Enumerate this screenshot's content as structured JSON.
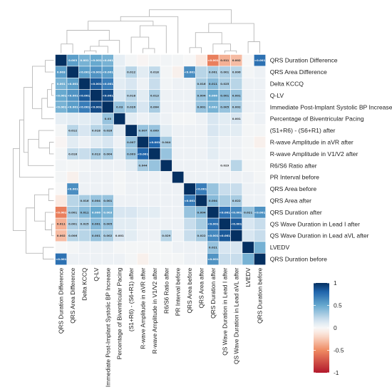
{
  "chart_data": {
    "type": "heatmap",
    "title": "",
    "variables": [
      "QRS Duration Difference",
      "QRS Area Difference",
      "Delta KCCQ",
      "Q-LV",
      "Immediate Post-Implant Systolic BP Increase",
      "Percentage of Biventricular Pacing",
      "(S1+R6) - (S6+R1) after",
      "R-wave Amplitude in aVR after",
      "R-wave Amplitude in V1/V2 after",
      "R6/S6 Ratio after",
      "PR Interval before",
      "QRS Area before",
      "QRS Area after",
      "QRS Duration after",
      "QS Wave Duration in Lead I after",
      "QS Wave Duration in Lead aVL after",
      "LVEDV",
      "QRS Duration before"
    ],
    "correlation": [
      [
        1.0,
        0.55,
        0.45,
        0.5,
        0.45,
        0.08,
        0.02,
        -0.02,
        0.02,
        0.03,
        0.02,
        0.0,
        -0.1,
        -0.55,
        -0.35,
        -0.3,
        0.0,
        0.75
      ],
      [
        0.55,
        1.0,
        0.55,
        0.6,
        0.55,
        0.1,
        0.25,
        0.1,
        0.22,
        0.02,
        -0.05,
        0.62,
        0.25,
        0.3,
        0.28,
        0.25,
        0.02,
        0.05
      ],
      [
        0.45,
        0.55,
        1.0,
        0.85,
        0.7,
        0.1,
        0.15,
        0.05,
        0.2,
        0.03,
        0.05,
        0.05,
        0.3,
        0.4,
        0.3,
        0.25,
        0.05,
        0.05
      ],
      [
        0.5,
        0.6,
        0.85,
        1.0,
        0.9,
        0.15,
        0.25,
        0.1,
        0.3,
        0.05,
        0.05,
        0.05,
        0.35,
        0.5,
        0.4,
        0.35,
        0.05,
        0.05
      ],
      [
        0.45,
        0.55,
        0.7,
        0.9,
        1.0,
        0.35,
        0.3,
        0.15,
        0.3,
        0.05,
        0.05,
        0.05,
        0.35,
        0.45,
        0.35,
        0.3,
        0.05,
        0.05
      ],
      [
        0.08,
        0.1,
        0.1,
        0.15,
        0.35,
        1.0,
        0.1,
        0.05,
        0.1,
        0.05,
        0.02,
        0.02,
        0.05,
        0.15,
        0.1,
        0.15,
        0.02,
        0.05
      ],
      [
        0.02,
        0.25,
        0.15,
        0.25,
        0.3,
        0.1,
        1.0,
        0.35,
        0.35,
        0.1,
        0.05,
        0.05,
        0.05,
        0.15,
        0.1,
        0.1,
        0.02,
        0.02
      ],
      [
        -0.02,
        0.1,
        0.05,
        0.1,
        0.15,
        0.05,
        0.35,
        1.0,
        0.8,
        0.3,
        0.05,
        0.05,
        0.05,
        0.1,
        0.05,
        0.05,
        0.02,
        -0.05
      ],
      [
        0.02,
        0.22,
        0.2,
        0.3,
        0.3,
        0.1,
        0.35,
        0.8,
        1.0,
        0.35,
        0.05,
        0.05,
        0.05,
        0.1,
        0.05,
        0.05,
        0.02,
        0.02
      ],
      [
        0.03,
        0.02,
        0.03,
        0.05,
        0.05,
        0.05,
        0.1,
        0.3,
        0.35,
        1.0,
        0.05,
        0.05,
        0.05,
        0.05,
        0.05,
        0.25,
        0.02,
        0.02
      ],
      [
        0.02,
        -0.05,
        0.05,
        0.05,
        0.05,
        0.02,
        0.05,
        0.05,
        0.05,
        0.05,
        1.0,
        0.05,
        0.05,
        0.05,
        0.05,
        0.05,
        0.05,
        0.02
      ],
      [
        0.0,
        0.62,
        0.05,
        0.05,
        0.05,
        0.02,
        0.05,
        0.05,
        0.05,
        0.05,
        0.05,
        1.0,
        0.7,
        0.35,
        0.2,
        0.2,
        0.05,
        0.05
      ],
      [
        -0.1,
        0.25,
        0.3,
        0.35,
        0.35,
        0.05,
        0.05,
        0.05,
        0.05,
        0.05,
        0.05,
        0.7,
        1.0,
        0.4,
        0.3,
        0.3,
        0.05,
        0.05
      ],
      [
        -0.55,
        0.3,
        0.4,
        0.5,
        0.45,
        0.15,
        0.15,
        0.1,
        0.1,
        0.05,
        0.05,
        0.35,
        0.4,
        1.0,
        0.75,
        0.65,
        0.35,
        0.6
      ],
      [
        -0.35,
        0.28,
        0.3,
        0.4,
        0.35,
        0.1,
        0.1,
        0.05,
        0.05,
        0.05,
        0.05,
        0.2,
        0.3,
        0.75,
        1.0,
        0.85,
        0.15,
        0.2
      ],
      [
        -0.3,
        0.25,
        0.25,
        0.35,
        0.3,
        0.15,
        0.1,
        0.05,
        0.05,
        0.25,
        0.05,
        0.2,
        0.3,
        0.65,
        0.85,
        1.0,
        0.15,
        0.2
      ],
      [
        0.0,
        0.02,
        0.05,
        0.05,
        0.05,
        0.02,
        0.02,
        0.02,
        0.02,
        0.02,
        0.05,
        0.05,
        0.05,
        0.35,
        0.15,
        0.15,
        1.0,
        0.45
      ],
      [
        0.75,
        0.05,
        0.05,
        0.05,
        0.05,
        0.05,
        0.02,
        -0.05,
        0.02,
        0.02,
        0.02,
        0.05,
        0.05,
        0.6,
        0.2,
        0.2,
        0.45,
        1.0
      ]
    ],
    "p_labels": [
      [
        0,
        1,
        "0.003"
      ],
      [
        0,
        2,
        "0.001"
      ],
      [
        0,
        3,
        "<0.001"
      ],
      [
        0,
        4,
        "<0.001"
      ],
      [
        0,
        13,
        "<0.001"
      ],
      [
        0,
        14,
        "0.011"
      ],
      [
        0,
        15,
        "0.002"
      ],
      [
        0,
        17,
        "<0.001"
      ],
      [
        1,
        0,
        "0.003"
      ],
      [
        1,
        2,
        "<0.001"
      ],
      [
        1,
        3,
        "<0.001"
      ],
      [
        1,
        4,
        "<0.001"
      ],
      [
        1,
        6,
        "0.012"
      ],
      [
        1,
        8,
        "0.018"
      ],
      [
        1,
        11,
        "<0.001"
      ],
      [
        1,
        13,
        "0.001"
      ],
      [
        1,
        14,
        "0.001"
      ],
      [
        1,
        15,
        "0.006"
      ],
      [
        2,
        0,
        "0.001"
      ],
      [
        2,
        1,
        "<0.001"
      ],
      [
        2,
        3,
        "<0.001"
      ],
      [
        2,
        4,
        "<0.001"
      ],
      [
        2,
        12,
        "0.016"
      ],
      [
        2,
        13,
        "0.011"
      ],
      [
        2,
        14,
        "0.025"
      ],
      [
        3,
        0,
        "<0.001"
      ],
      [
        3,
        1,
        "<0.001"
      ],
      [
        3,
        2,
        "<0.001"
      ],
      [
        3,
        4,
        "<0.001"
      ],
      [
        3,
        6,
        "0.018"
      ],
      [
        3,
        8,
        "0.013"
      ],
      [
        3,
        12,
        "0.004"
      ],
      [
        3,
        13,
        "0.006"
      ],
      [
        3,
        14,
        "0.001"
      ],
      [
        3,
        15,
        "0.001"
      ],
      [
        4,
        0,
        "<0.001"
      ],
      [
        4,
        1,
        "<0.001"
      ],
      [
        4,
        2,
        "<0.001"
      ],
      [
        4,
        3,
        "<0.001"
      ],
      [
        4,
        5,
        "0.03"
      ],
      [
        4,
        6,
        "0.026"
      ],
      [
        4,
        8,
        "0.004"
      ],
      [
        4,
        12,
        "0.001"
      ],
      [
        4,
        13,
        "0.003"
      ],
      [
        4,
        14,
        "0.005"
      ],
      [
        4,
        15,
        "0.002"
      ],
      [
        5,
        4,
        "0.03"
      ],
      [
        5,
        15,
        "0.001"
      ],
      [
        6,
        1,
        "0.012"
      ],
      [
        6,
        3,
        "0.018"
      ],
      [
        6,
        4,
        "0.026"
      ],
      [
        6,
        7,
        "0.007"
      ],
      [
        6,
        8,
        "0.009"
      ],
      [
        7,
        6,
        "0.007"
      ],
      [
        7,
        8,
        "<0.001"
      ],
      [
        7,
        9,
        "0.044"
      ],
      [
        8,
        1,
        "0.018"
      ],
      [
        8,
        3,
        "0.013"
      ],
      [
        8,
        4,
        "0.004"
      ],
      [
        8,
        6,
        "0.009"
      ],
      [
        8,
        7,
        "<0.001"
      ],
      [
        9,
        7,
        "0.044"
      ],
      [
        9,
        14,
        "0.029"
      ],
      [
        11,
        1,
        "<0.001"
      ],
      [
        11,
        12,
        "<0.001"
      ],
      [
        12,
        2,
        "0.016"
      ],
      [
        12,
        3,
        "0.004"
      ],
      [
        12,
        4,
        "0.001"
      ],
      [
        12,
        11,
        "<0.001"
      ],
      [
        12,
        13,
        "0.004"
      ],
      [
        12,
        15,
        "0.022"
      ],
      [
        13,
        0,
        "<0.001"
      ],
      [
        13,
        1,
        "0.001"
      ],
      [
        13,
        2,
        "0.011"
      ],
      [
        13,
        3,
        "0.006"
      ],
      [
        13,
        4,
        "0.003"
      ],
      [
        13,
        12,
        "0.004"
      ],
      [
        13,
        14,
        "<0.001"
      ],
      [
        13,
        15,
        "<0.001"
      ],
      [
        13,
        16,
        "0.021"
      ],
      [
        13,
        17,
        "<0.001"
      ],
      [
        14,
        0,
        "0.011"
      ],
      [
        14,
        1,
        "0.001"
      ],
      [
        14,
        2,
        "0.025"
      ],
      [
        14,
        3,
        "0.001"
      ],
      [
        14,
        4,
        "0.005"
      ],
      [
        14,
        13,
        "<0.001"
      ],
      [
        14,
        15,
        "<0.001"
      ],
      [
        15,
        0,
        "0.002"
      ],
      [
        15,
        1,
        "0.006"
      ],
      [
        15,
        3,
        "0.001"
      ],
      [
        15,
        4,
        "0.002"
      ],
      [
        15,
        5,
        "0.001"
      ],
      [
        15,
        9,
        "0.029"
      ],
      [
        15,
        12,
        "0.022"
      ],
      [
        15,
        13,
        "<0.001"
      ],
      [
        15,
        14,
        "<0.001"
      ],
      [
        16,
        13,
        "0.021"
      ],
      [
        17,
        0,
        "<0.001"
      ],
      [
        17,
        13,
        "<0.001"
      ]
    ],
    "color_scale": {
      "min": -1,
      "max": 1,
      "low_color": "#b2182b",
      "mid_color": "#f7f7f7",
      "high_color": "#053061"
    },
    "legend": {
      "ticks": [
        "1",
        "0.5",
        "0",
        "-0.5",
        "-1"
      ],
      "position": "bottom-right"
    }
  }
}
